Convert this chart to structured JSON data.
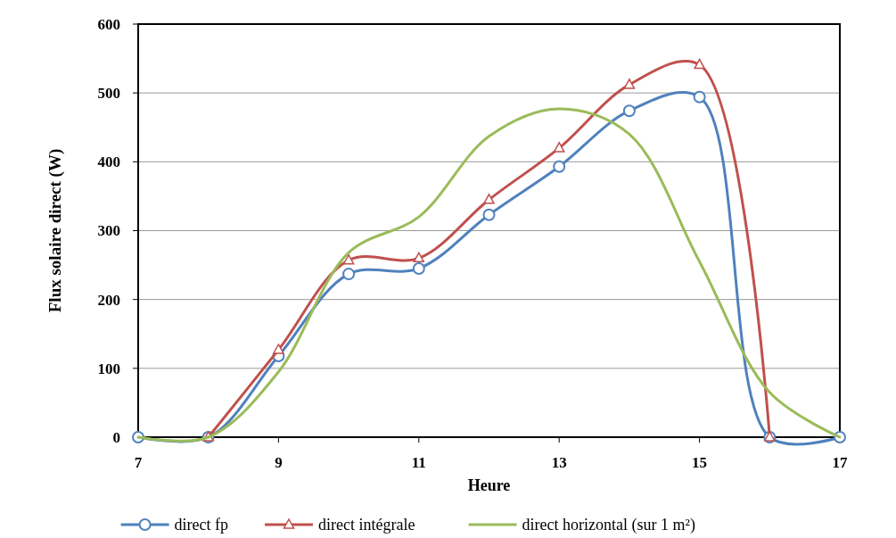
{
  "chart_data": {
    "type": "line",
    "xlabel": "Heure",
    "ylabel": "Flux solaire direct (W)",
    "x": [
      7,
      8,
      9,
      10,
      11,
      12,
      13,
      14,
      15,
      16,
      17
    ],
    "xlim": [
      7,
      17
    ],
    "xticks": [
      7,
      9,
      11,
      13,
      15,
      17
    ],
    "ylim": [
      0,
      600
    ],
    "yticks": [
      0,
      100,
      200,
      300,
      400,
      500,
      600
    ],
    "grid": "y",
    "legend": "bottom",
    "series": [
      {
        "name": "direct fp",
        "color": "#4f81bd",
        "marker": "circle",
        "values": [
          0,
          0,
          118,
          237,
          245,
          323,
          393,
          474,
          494,
          0,
          0
        ]
      },
      {
        "name": "direct intégrale",
        "color": "#c0504d",
        "marker": "triangle",
        "x": [
          8,
          9,
          10,
          11,
          12,
          13,
          14,
          15,
          16
        ],
        "values": [
          0,
          127,
          257,
          260,
          345,
          420,
          512,
          541,
          0
        ]
      },
      {
        "name": "direct horizontal (sur 1 m²)",
        "color": "#9bbb59",
        "marker": "none",
        "values": [
          0,
          0,
          95,
          268,
          320,
          437,
          477,
          440,
          255,
          65,
          0
        ]
      }
    ]
  }
}
